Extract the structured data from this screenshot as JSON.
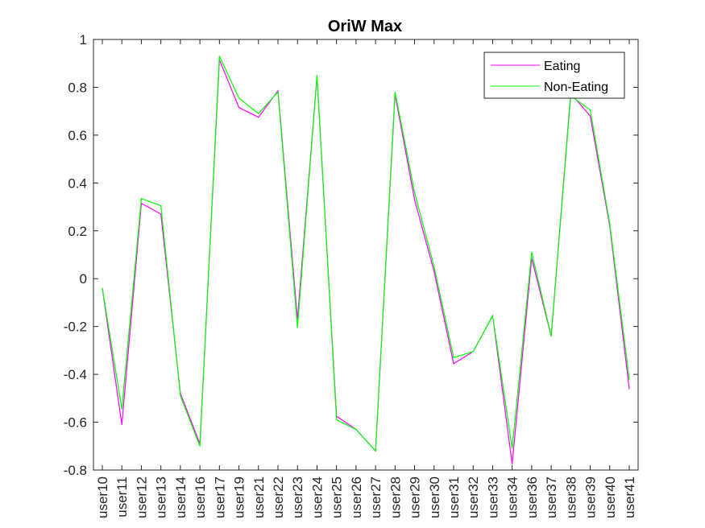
{
  "chart_data": {
    "type": "line",
    "title": "OriW Max",
    "xlabel": "",
    "ylabel": "",
    "ylim": [
      -0.8,
      1
    ],
    "yticks": [
      "-0.8",
      "-0.6",
      "-0.4",
      "-0.2",
      "0",
      "0.2",
      "0.4",
      "0.6",
      "0.8",
      "1"
    ],
    "ytick_values": [
      -0.8,
      -0.6,
      -0.4,
      -0.2,
      0,
      0.2,
      0.4,
      0.6,
      0.8,
      1
    ],
    "grid": false,
    "legend_position": "top-right",
    "categories": [
      "user10",
      "user11",
      "user12",
      "user13",
      "user14",
      "user16",
      "user17",
      "user19",
      "user21",
      "user22",
      "user23",
      "user24",
      "user25",
      "user26",
      "user27",
      "user28",
      "user29",
      "user30",
      "user31",
      "user32",
      "user33",
      "user34",
      "user36",
      "user37",
      "user38",
      "user39",
      "user40",
      "user41"
    ],
    "series": [
      {
        "name": "Eating",
        "color": "#ff00ff",
        "values": [
          -0.04,
          -0.61,
          0.315,
          0.27,
          -0.48,
          -0.69,
          0.915,
          0.715,
          0.675,
          0.785,
          -0.17,
          0.845,
          -0.575,
          -0.63,
          -0.72,
          0.77,
          0.33,
          0.03,
          -0.355,
          -0.305,
          -0.155,
          -0.775,
          0.085,
          -0.24,
          0.775,
          0.68,
          0.22,
          -0.46
        ]
      },
      {
        "name": "Non-Eating",
        "color": "#00ff00",
        "values": [
          -0.04,
          -0.545,
          0.335,
          0.305,
          -0.49,
          -0.7,
          0.93,
          0.755,
          0.69,
          0.78,
          -0.205,
          0.85,
          -0.59,
          -0.63,
          -0.72,
          0.78,
          0.36,
          0.05,
          -0.33,
          -0.305,
          -0.155,
          -0.71,
          0.11,
          -0.24,
          0.765,
          0.705,
          0.23,
          -0.42
        ]
      }
    ]
  }
}
